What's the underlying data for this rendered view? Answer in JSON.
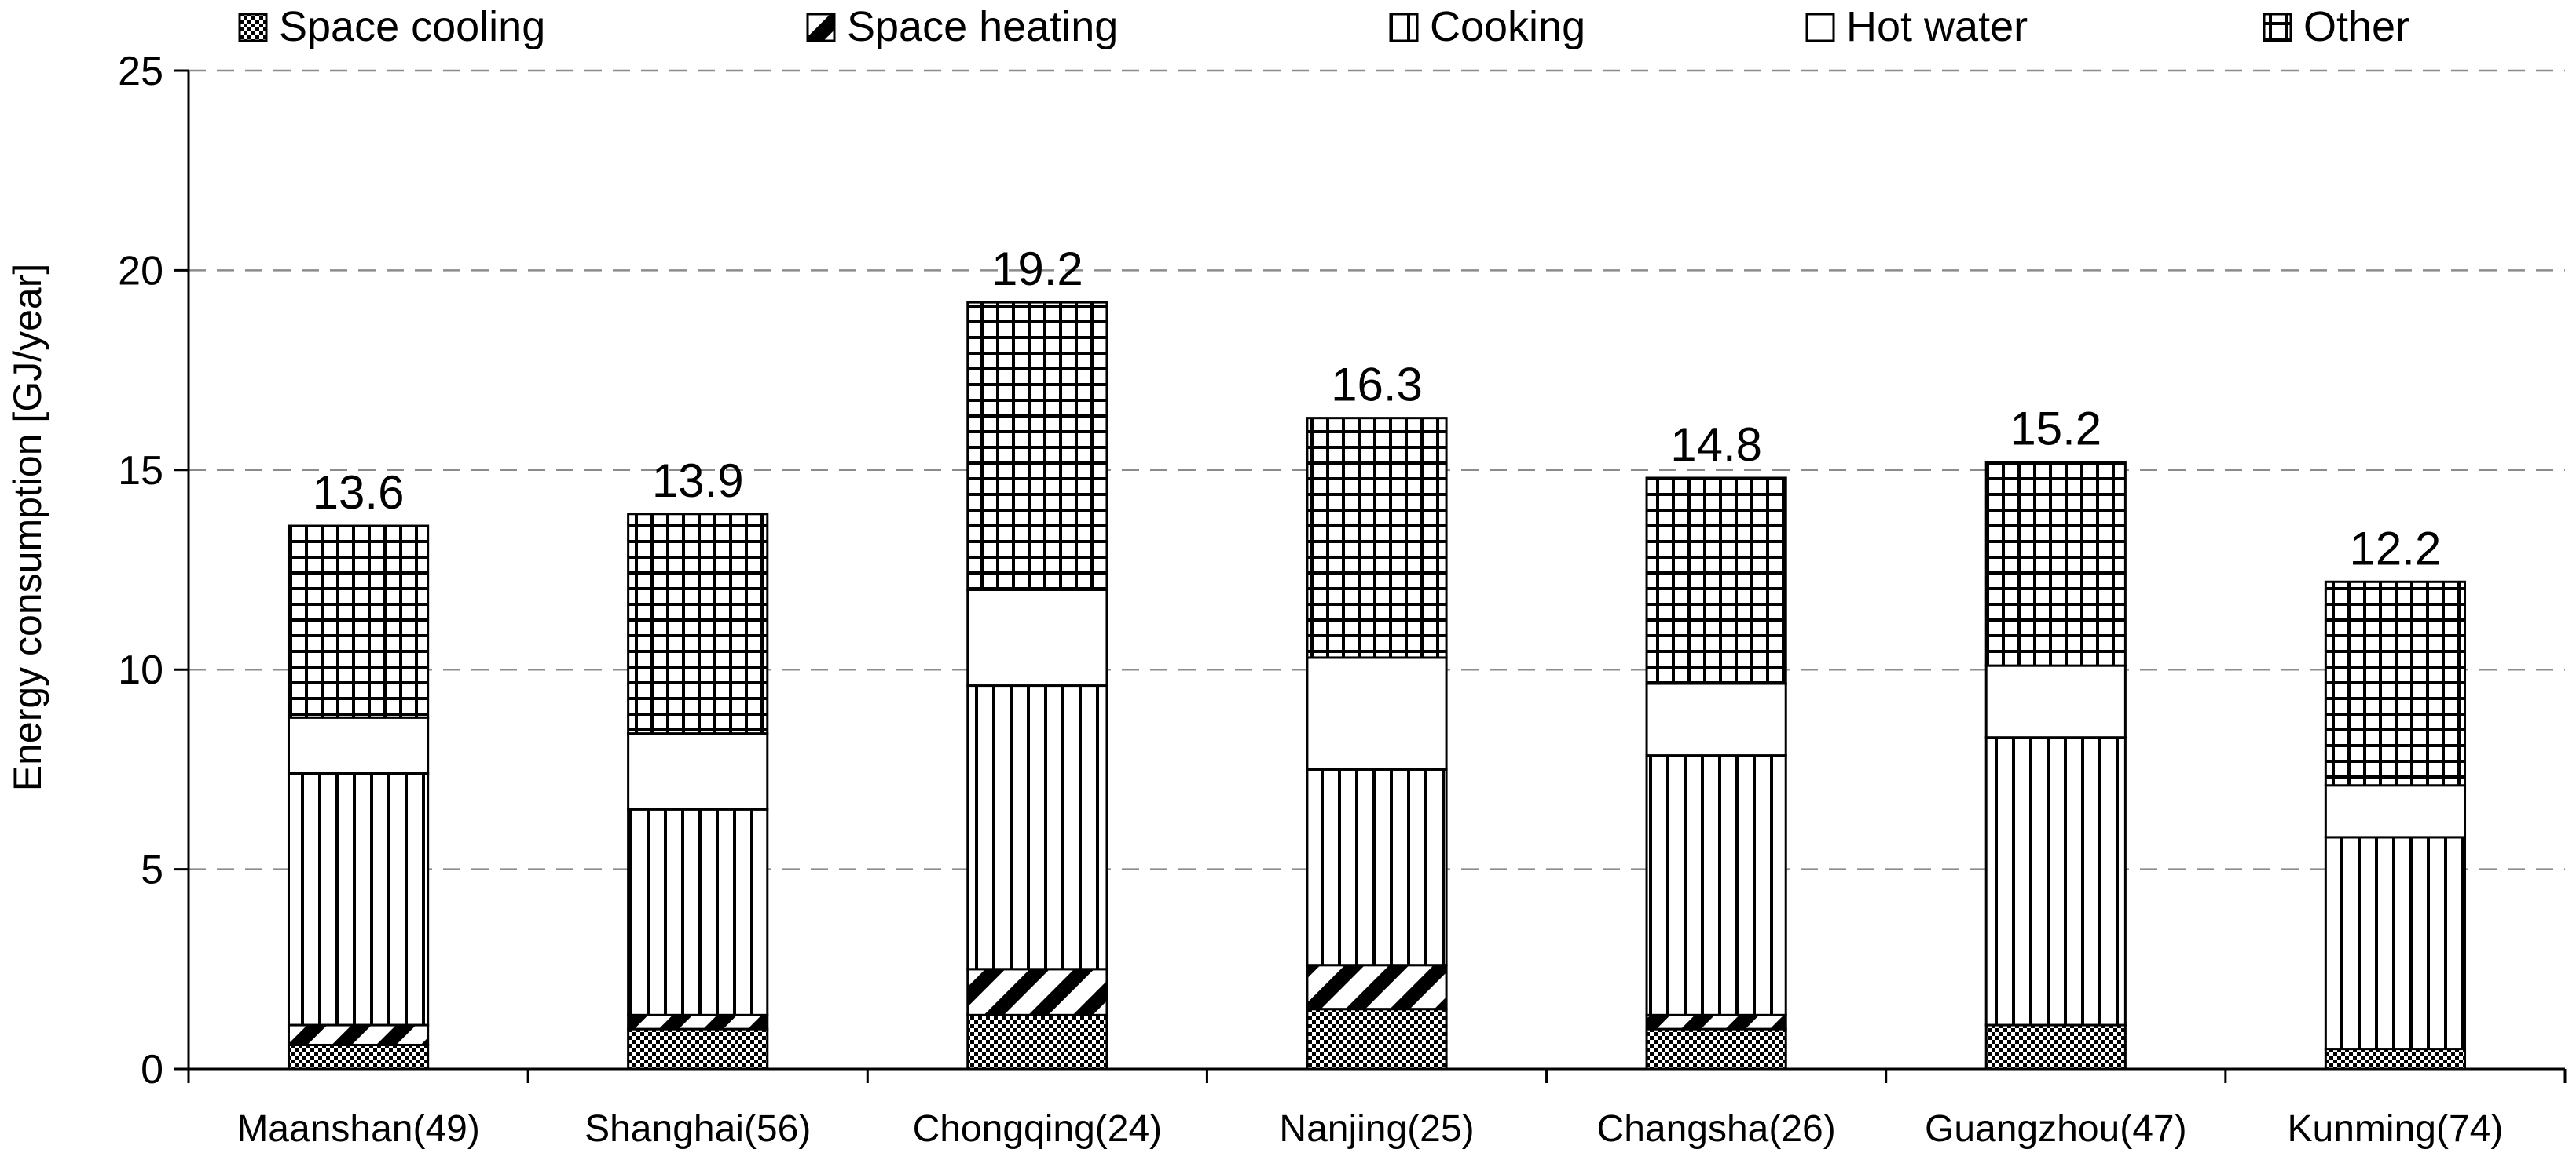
{
  "chart_data": {
    "type": "bar",
    "stacked": true,
    "title": "",
    "ylabel": "Energy consumption [GJ/year]",
    "xlabel": "",
    "ylim": [
      0,
      25
    ],
    "yticks": [
      0,
      5,
      10,
      15,
      20,
      25
    ],
    "grid": "horizontal dashed",
    "legend_position": "top",
    "categories": [
      "Maanshan(49)",
      "Shanghai(56)",
      "Chongqing(24)",
      "Nanjing(25)",
      "Changsha(26)",
      "Guangzhou(47)",
      "Kunming(74)"
    ],
    "totals": [
      "13.6",
      "13.9",
      "19.2",
      "16.3",
      "14.8",
      "15.2",
      "12.2"
    ],
    "series": [
      {
        "name": "Space cooling",
        "pattern": "checker",
        "values": [
          0.6,
          1.0,
          1.35,
          1.5,
          1.0,
          1.1,
          0.5
        ]
      },
      {
        "name": "Space heating",
        "pattern": "diagonal",
        "values": [
          0.5,
          0.35,
          1.15,
          1.1,
          0.35,
          0.0,
          0.0
        ]
      },
      {
        "name": "Cooking",
        "pattern": "vertical",
        "values": [
          6.3,
          5.15,
          7.1,
          4.9,
          6.5,
          7.2,
          5.3
        ]
      },
      {
        "name": "Hot water",
        "pattern": "blank",
        "values": [
          1.4,
          1.9,
          2.4,
          2.8,
          1.8,
          1.8,
          1.3
        ]
      },
      {
        "name": "Other",
        "pattern": "grid",
        "values": [
          4.8,
          5.5,
          7.2,
          6.0,
          5.15,
          5.1,
          5.1
        ]
      }
    ]
  }
}
